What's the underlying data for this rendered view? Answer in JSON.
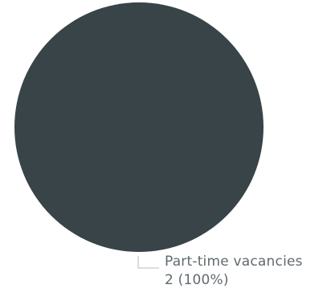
{
  "chart_data": {
    "type": "pie",
    "title": "",
    "slices": [
      {
        "label": "Part-time vacancies",
        "value": 2,
        "percent_label": "2 (100%)",
        "color": "#384447"
      }
    ],
    "legend": "none"
  },
  "colors": {
    "background": "#ffffff",
    "label_text": "#5f6a6e",
    "leader_line": "#b8bcbe"
  }
}
